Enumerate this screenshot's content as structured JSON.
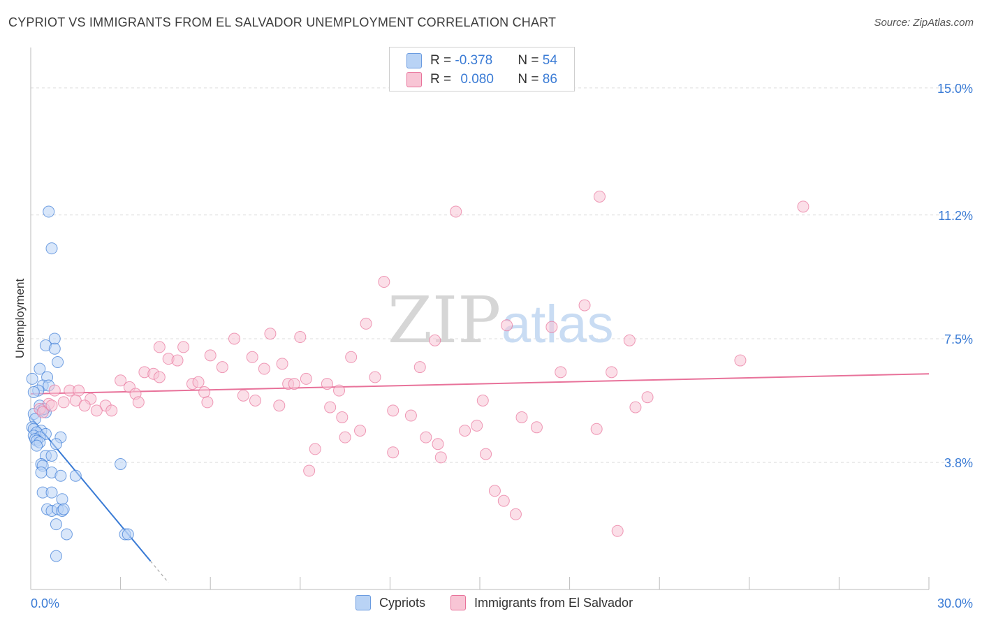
{
  "header": {
    "title": "CYPRIOT VS IMMIGRANTS FROM EL SALVADOR UNEMPLOYMENT CORRELATION CHART",
    "source": "Source: ZipAtlas.com"
  },
  "legend_top": {
    "rows": [
      {
        "r_label": "R = ",
        "r_value": "-0.378",
        "n_label": "N = ",
        "n_value": "54"
      },
      {
        "r_label": "R = ",
        "r_value": "0.080",
        "n_label": "N = ",
        "n_value": "86"
      }
    ]
  },
  "legend_bottom": {
    "items": [
      "Cypriots",
      "Immigrants from El Salvador"
    ]
  },
  "watermark": {
    "zip": "ZIP",
    "atlas": "atlas"
  },
  "colors": {
    "blue": "#3a7bd5",
    "blue_fill": "#b9d3f5",
    "pink": "#e8729a",
    "pink_fill": "#f8c5d5",
    "grid": "#dddddd",
    "tick_text": "#3a7bd5"
  },
  "chart_data": {
    "type": "scatter",
    "title": "CYPRIOT VS IMMIGRANTS FROM EL SALVADOR UNEMPLOYMENT CORRELATION CHART",
    "xlabel": "",
    "ylabel": "Unemployment",
    "xlim": [
      0,
      30
    ],
    "ylim": [
      0,
      16
    ],
    "x_tick_labels": [
      "0.0%",
      "30.0%"
    ],
    "y_ticks": [
      3.8,
      7.5,
      11.2,
      15.0
    ],
    "y_tick_labels": [
      "3.8%",
      "7.5%",
      "11.2%",
      "15.0%"
    ],
    "grid": true,
    "legend_position": "top-center",
    "series": [
      {
        "name": "Cypriots",
        "color": "#3a7bd5",
        "r": -0.378,
        "n": 54,
        "trend": {
          "x0": 0.0,
          "y0": 5.15,
          "x1": 4.0,
          "y1": 0.85,
          "dashed_to_x": 4.6
        },
        "points": [
          [
            0.6,
            11.3
          ],
          [
            0.7,
            10.2
          ],
          [
            0.8,
            7.5
          ],
          [
            0.5,
            7.3
          ],
          [
            0.8,
            7.2
          ],
          [
            0.9,
            6.8
          ],
          [
            0.3,
            6.6
          ],
          [
            0.55,
            6.35
          ],
          [
            0.05,
            6.3
          ],
          [
            0.4,
            6.1
          ],
          [
            0.6,
            6.1
          ],
          [
            0.25,
            5.95
          ],
          [
            0.1,
            5.9
          ],
          [
            0.3,
            5.5
          ],
          [
            0.35,
            5.35
          ],
          [
            0.5,
            5.3
          ],
          [
            0.1,
            5.25
          ],
          [
            0.15,
            5.1
          ],
          [
            0.05,
            4.85
          ],
          [
            0.1,
            4.8
          ],
          [
            0.35,
            4.75
          ],
          [
            0.2,
            4.7
          ],
          [
            0.5,
            4.65
          ],
          [
            0.1,
            4.6
          ],
          [
            0.3,
            4.55
          ],
          [
            1.0,
            4.55
          ],
          [
            0.15,
            4.5
          ],
          [
            0.2,
            4.45
          ],
          [
            0.3,
            4.4
          ],
          [
            0.85,
            4.35
          ],
          [
            0.2,
            4.3
          ],
          [
            0.5,
            4.0
          ],
          [
            0.7,
            4.0
          ],
          [
            0.35,
            3.75
          ],
          [
            0.4,
            3.7
          ],
          [
            0.7,
            3.5
          ],
          [
            0.35,
            3.5
          ],
          [
            1.0,
            3.4
          ],
          [
            1.5,
            3.4
          ],
          [
            3.0,
            3.75
          ],
          [
            0.4,
            2.9
          ],
          [
            0.7,
            2.9
          ],
          [
            1.05,
            2.7
          ],
          [
            0.55,
            2.4
          ],
          [
            0.7,
            2.35
          ],
          [
            0.9,
            2.4
          ],
          [
            1.05,
            2.35
          ],
          [
            1.1,
            2.4
          ],
          [
            0.85,
            1.95
          ],
          [
            1.2,
            1.65
          ],
          [
            3.15,
            1.65
          ],
          [
            3.25,
            1.65
          ],
          [
            0.85,
            1.0
          ],
          [
            0.45,
            5.4
          ]
        ]
      },
      {
        "name": "Immigrants from El Salvador",
        "color": "#e8729a",
        "r": 0.08,
        "n": 86,
        "trend": {
          "x0": 0.0,
          "y0": 5.85,
          "x1": 30.0,
          "y1": 6.45
        },
        "points": [
          [
            19.0,
            11.75
          ],
          [
            14.2,
            11.3
          ],
          [
            25.8,
            11.45
          ],
          [
            11.8,
            9.2
          ],
          [
            18.5,
            8.5
          ],
          [
            11.2,
            7.95
          ],
          [
            15.9,
            7.9
          ],
          [
            17.4,
            7.85
          ],
          [
            8.0,
            7.65
          ],
          [
            9.0,
            7.55
          ],
          [
            6.8,
            7.5
          ],
          [
            13.5,
            7.45
          ],
          [
            20.0,
            7.45
          ],
          [
            4.3,
            7.25
          ],
          [
            5.1,
            7.25
          ],
          [
            6.0,
            7.0
          ],
          [
            7.4,
            6.95
          ],
          [
            10.7,
            6.95
          ],
          [
            4.6,
            6.9
          ],
          [
            4.9,
            6.85
          ],
          [
            8.4,
            6.75
          ],
          [
            6.4,
            6.65
          ],
          [
            7.8,
            6.6
          ],
          [
            13.0,
            6.65
          ],
          [
            23.7,
            6.85
          ],
          [
            17.7,
            6.5
          ],
          [
            19.4,
            6.5
          ],
          [
            3.8,
            6.5
          ],
          [
            4.1,
            6.45
          ],
          [
            4.3,
            6.35
          ],
          [
            11.5,
            6.35
          ],
          [
            9.2,
            6.3
          ],
          [
            3.0,
            6.25
          ],
          [
            5.4,
            6.15
          ],
          [
            5.6,
            6.2
          ],
          [
            8.6,
            6.15
          ],
          [
            8.8,
            6.15
          ],
          [
            9.9,
            6.15
          ],
          [
            3.3,
            6.05
          ],
          [
            0.8,
            5.95
          ],
          [
            1.3,
            5.95
          ],
          [
            1.6,
            5.95
          ],
          [
            2.0,
            5.7
          ],
          [
            5.8,
            5.9
          ],
          [
            7.1,
            5.8
          ],
          [
            10.3,
            5.95
          ],
          [
            3.5,
            5.85
          ],
          [
            1.5,
            5.65
          ],
          [
            1.1,
            5.6
          ],
          [
            3.6,
            5.6
          ],
          [
            5.9,
            5.6
          ],
          [
            7.5,
            5.65
          ],
          [
            15.1,
            5.65
          ],
          [
            20.6,
            5.75
          ],
          [
            0.6,
            5.55
          ],
          [
            1.8,
            5.5
          ],
          [
            2.5,
            5.5
          ],
          [
            8.3,
            5.5
          ],
          [
            10.0,
            5.45
          ],
          [
            20.2,
            5.45
          ],
          [
            0.3,
            5.4
          ],
          [
            0.7,
            5.5
          ],
          [
            2.2,
            5.35
          ],
          [
            2.7,
            5.35
          ],
          [
            12.1,
            5.35
          ],
          [
            0.4,
            5.3
          ],
          [
            12.7,
            5.2
          ],
          [
            10.4,
            5.15
          ],
          [
            16.4,
            5.15
          ],
          [
            14.9,
            4.9
          ],
          [
            18.9,
            4.8
          ],
          [
            16.9,
            4.85
          ],
          [
            14.5,
            4.75
          ],
          [
            11.0,
            4.75
          ],
          [
            10.5,
            4.55
          ],
          [
            13.2,
            4.55
          ],
          [
            13.6,
            4.35
          ],
          [
            9.5,
            4.2
          ],
          [
            12.1,
            4.1
          ],
          [
            13.7,
            3.95
          ],
          [
            15.2,
            4.05
          ],
          [
            9.3,
            3.55
          ],
          [
            15.5,
            2.95
          ],
          [
            15.8,
            2.65
          ],
          [
            16.2,
            2.25
          ],
          [
            19.6,
            1.75
          ]
        ]
      }
    ]
  }
}
